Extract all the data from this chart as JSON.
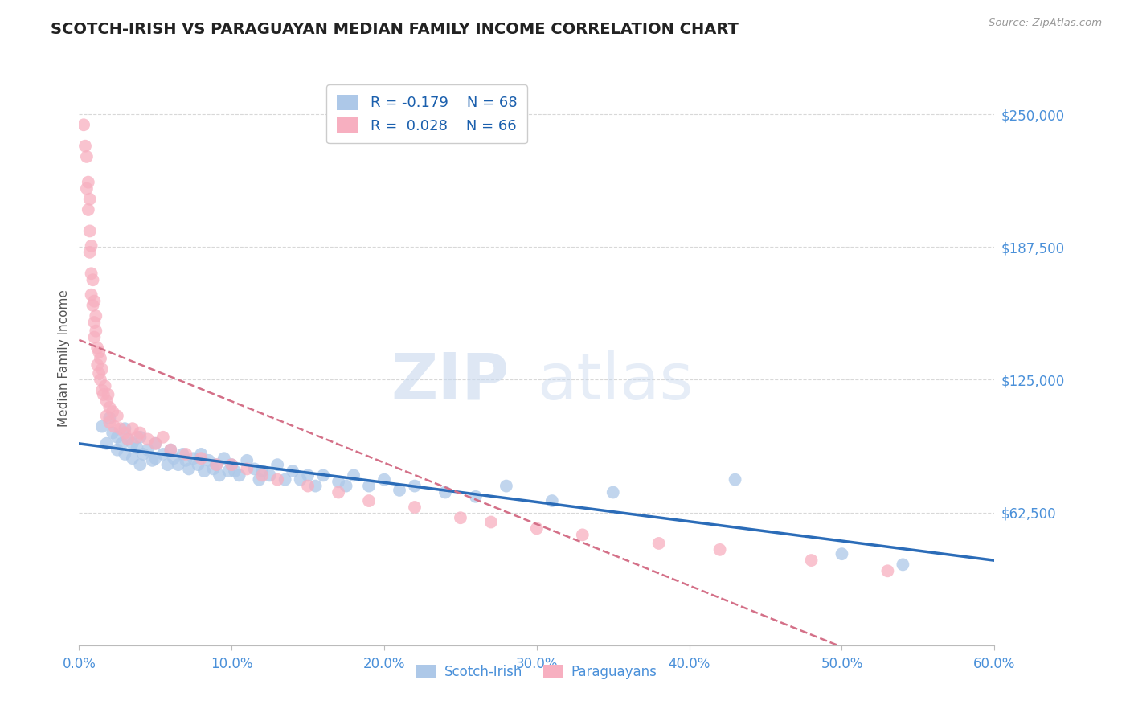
{
  "title": "SCOTCH-IRISH VS PARAGUAYAN MEDIAN FAMILY INCOME CORRELATION CHART",
  "source_text": "Source: ZipAtlas.com",
  "ylabel": "Median Family Income",
  "x_min": 0.0,
  "x_max": 0.6,
  "y_min": 0,
  "y_max": 270000,
  "yticks": [
    62500,
    125000,
    187500,
    250000
  ],
  "ytick_labels": [
    "$62,500",
    "$125,000",
    "$187,500",
    "$250,000"
  ],
  "xticks": [
    0.0,
    0.1,
    0.2,
    0.3,
    0.4,
    0.5,
    0.6
  ],
  "xtick_labels": [
    "0.0%",
    "10.0%",
    "20.0%",
    "30.0%",
    "40.0%",
    "50.0%",
    "60.0%"
  ],
  "scotch_irish_color": "#adc8e8",
  "paraguayan_color": "#f7afc0",
  "trend_blue": "#2b6cb8",
  "trend_pink": "#d47088",
  "legend_R1": "-0.179",
  "legend_N1": "68",
  "legend_R2": "0.028",
  "legend_N2": "66",
  "label1": "Scotch-Irish",
  "label2": "Paraguayans",
  "watermark_zip": "ZIP",
  "watermark_atlas": "atlas",
  "background_color": "#ffffff",
  "title_color": "#222222",
  "axis_label_color": "#555555",
  "tick_color": "#4a90d9",
  "grid_color": "#d8d8d8",
  "scotch_irish_x": [
    0.015,
    0.018,
    0.02,
    0.022,
    0.025,
    0.025,
    0.028,
    0.03,
    0.03,
    0.032,
    0.035,
    0.035,
    0.038,
    0.04,
    0.04,
    0.042,
    0.045,
    0.048,
    0.05,
    0.05,
    0.055,
    0.058,
    0.06,
    0.062,
    0.065,
    0.068,
    0.07,
    0.072,
    0.075,
    0.078,
    0.08,
    0.082,
    0.085,
    0.088,
    0.09,
    0.092,
    0.095,
    0.098,
    0.1,
    0.102,
    0.105,
    0.11,
    0.115,
    0.118,
    0.12,
    0.125,
    0.13,
    0.135,
    0.14,
    0.145,
    0.15,
    0.155,
    0.16,
    0.17,
    0.175,
    0.18,
    0.19,
    0.2,
    0.21,
    0.22,
    0.24,
    0.26,
    0.28,
    0.31,
    0.35,
    0.43,
    0.5,
    0.54
  ],
  "scotch_irish_y": [
    103000,
    95000,
    107000,
    100000,
    98000,
    92000,
    95000,
    102000,
    90000,
    97000,
    95000,
    88000,
    93000,
    98000,
    85000,
    90000,
    92000,
    87000,
    95000,
    88000,
    90000,
    85000,
    92000,
    88000,
    85000,
    90000,
    87000,
    83000,
    88000,
    85000,
    90000,
    82000,
    87000,
    83000,
    85000,
    80000,
    88000,
    82000,
    85000,
    82000,
    80000,
    87000,
    83000,
    78000,
    82000,
    80000,
    85000,
    78000,
    82000,
    78000,
    80000,
    75000,
    80000,
    77000,
    75000,
    80000,
    75000,
    78000,
    73000,
    75000,
    72000,
    70000,
    75000,
    68000,
    72000,
    78000,
    43000,
    38000
  ],
  "paraguayan_x": [
    0.003,
    0.004,
    0.005,
    0.005,
    0.006,
    0.006,
    0.007,
    0.007,
    0.007,
    0.008,
    0.008,
    0.008,
    0.009,
    0.009,
    0.01,
    0.01,
    0.01,
    0.011,
    0.011,
    0.012,
    0.012,
    0.013,
    0.013,
    0.014,
    0.014,
    0.015,
    0.015,
    0.016,
    0.017,
    0.018,
    0.018,
    0.019,
    0.02,
    0.02,
    0.022,
    0.023,
    0.025,
    0.027,
    0.03,
    0.032,
    0.035,
    0.038,
    0.04,
    0.045,
    0.05,
    0.055,
    0.06,
    0.07,
    0.08,
    0.09,
    0.1,
    0.11,
    0.12,
    0.13,
    0.15,
    0.17,
    0.19,
    0.22,
    0.25,
    0.27,
    0.3,
    0.33,
    0.38,
    0.42,
    0.48,
    0.53
  ],
  "paraguayan_y": [
    245000,
    235000,
    230000,
    215000,
    218000,
    205000,
    210000,
    195000,
    185000,
    188000,
    175000,
    165000,
    172000,
    160000,
    162000,
    152000,
    145000,
    155000,
    148000,
    140000,
    132000,
    138000,
    128000,
    135000,
    125000,
    130000,
    120000,
    118000,
    122000,
    115000,
    108000,
    118000,
    112000,
    105000,
    110000,
    103000,
    108000,
    102000,
    100000,
    97000,
    102000,
    98000,
    100000,
    97000,
    95000,
    98000,
    92000,
    90000,
    88000,
    85000,
    85000,
    83000,
    80000,
    78000,
    75000,
    72000,
    68000,
    65000,
    60000,
    58000,
    55000,
    52000,
    48000,
    45000,
    40000,
    35000
  ]
}
